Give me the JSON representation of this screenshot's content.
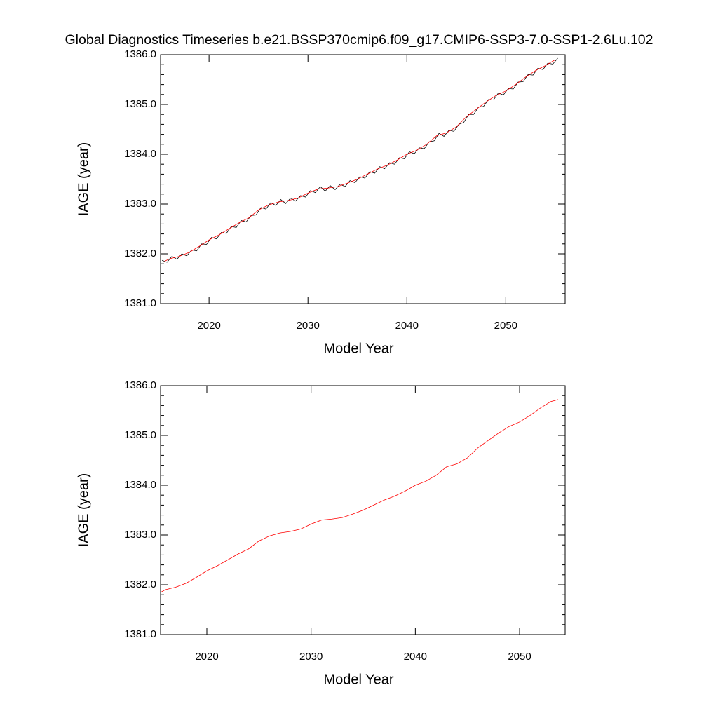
{
  "chart_data": [
    {
      "type": "line",
      "title": "Global Diagnostics Timeseries b.e21.BSSP370cmip6.f09_g17.CMIP6-SSP3-7.0-SSP1-2.6Lu.102",
      "xlabel": "Model Year",
      "ylabel": "IAGE (year)",
      "xlim": [
        2015.1,
        2056.0
      ],
      "xticks": [
        2020,
        2030,
        2040,
        2050
      ],
      "ylim": [
        1381,
        1386
      ],
      "yticks": [
        {
          "value": 1381,
          "label": "1381.0"
        },
        {
          "value": 1382,
          "label": "1382.0"
        },
        {
          "value": 1383,
          "label": "1383.0"
        },
        {
          "value": 1384,
          "label": "1384.0"
        },
        {
          "value": 1385,
          "label": "1385.0"
        },
        {
          "value": 1386,
          "label": "1386.0"
        }
      ],
      "series": [
        {
          "color": "#000000",
          "x": [
            2015.25,
            2015.75,
            2016.25,
            2016.75,
            2017.25,
            2017.75,
            2018.25,
            2018.75,
            2019.25,
            2019.75,
            2020.25,
            2020.75,
            2021.25,
            2021.75,
            2022.25,
            2022.75,
            2023.25,
            2023.75,
            2024.25,
            2024.75,
            2025.25,
            2025.75,
            2026.25,
            2026.75,
            2027.25,
            2027.75,
            2028.25,
            2028.75,
            2029.25,
            2029.75,
            2030.25,
            2030.75,
            2031.25,
            2031.75,
            2032.25,
            2032.75,
            2033.25,
            2033.75,
            2034.25,
            2034.75,
            2035.25,
            2035.75,
            2036.25,
            2036.75,
            2037.25,
            2037.75,
            2038.25,
            2038.75,
            2039.25,
            2039.75,
            2040.25,
            2040.75,
            2041.25,
            2041.75,
            2042.25,
            2042.75,
            2043.25,
            2043.75,
            2044.25,
            2044.75,
            2045.25,
            2045.75,
            2046.25,
            2046.75,
            2047.25,
            2047.75,
            2048.25,
            2048.75,
            2049.25,
            2049.75,
            2050.25,
            2050.75,
            2051.25,
            2051.75,
            2052.25,
            2052.75,
            2053.25,
            2053.75,
            2054.25,
            2054.75,
            2055.25
          ],
          "values": [
            1381.87,
            1381.83,
            1381.95,
            1381.89,
            1382.0,
            1381.96,
            1382.08,
            1382.06,
            1382.2,
            1382.19,
            1382.33,
            1382.3,
            1382.43,
            1382.41,
            1382.55,
            1382.53,
            1382.67,
            1382.64,
            1382.77,
            1382.78,
            1382.93,
            1382.9,
            1383.03,
            1382.97,
            1383.09,
            1383.01,
            1383.12,
            1383.06,
            1383.17,
            1383.14,
            1383.27,
            1383.23,
            1383.35,
            1383.26,
            1383.37,
            1383.29,
            1383.4,
            1383.35,
            1383.47,
            1383.43,
            1383.55,
            1383.52,
            1383.65,
            1383.62,
            1383.75,
            1383.71,
            1383.83,
            1383.8,
            1383.93,
            1383.91,
            1384.05,
            1384.01,
            1384.13,
            1384.11,
            1384.25,
            1384.27,
            1384.42,
            1384.36,
            1384.48,
            1384.46,
            1384.6,
            1384.64,
            1384.8,
            1384.8,
            1384.95,
            1384.96,
            1385.1,
            1385.09,
            1385.23,
            1385.19,
            1385.32,
            1385.31,
            1385.45,
            1385.46,
            1385.6,
            1385.59,
            1385.73,
            1385.7,
            1385.83,
            1385.81,
            1385.93
          ]
        },
        {
          "color": "#ff0000",
          "x": [
            2015.5,
            2016,
            2017,
            2018,
            2019,
            2020,
            2021,
            2022,
            2023,
            2024,
            2025,
            2026,
            2027,
            2028,
            2029,
            2030,
            2031,
            2032,
            2033,
            2034,
            2035,
            2036,
            2037,
            2038,
            2039,
            2040,
            2041,
            2042,
            2043,
            2044,
            2045,
            2046,
            2047,
            2048,
            2049,
            2050,
            2051,
            2052,
            2053,
            2054,
            2055
          ],
          "values": [
            1381.85,
            1381.9,
            1381.95,
            1382.03,
            1382.15,
            1382.28,
            1382.38,
            1382.5,
            1382.62,
            1382.72,
            1382.88,
            1382.98,
            1383.04,
            1383.07,
            1383.12,
            1383.22,
            1383.3,
            1383.32,
            1383.35,
            1383.42,
            1383.5,
            1383.6,
            1383.7,
            1383.78,
            1383.88,
            1384.0,
            1384.08,
            1384.2,
            1384.37,
            1384.43,
            1384.55,
            1384.75,
            1384.9,
            1385.05,
            1385.18,
            1385.27,
            1385.4,
            1385.55,
            1385.68,
            1385.78,
            1385.9
          ]
        }
      ]
    },
    {
      "type": "line",
      "xlabel": "Model Year",
      "ylabel": "IAGE (year)",
      "xlim": [
        2015.56,
        2054.37
      ],
      "xticks": [
        2020,
        2030,
        2040,
        2050
      ],
      "ylim": [
        1381,
        1386
      ],
      "yticks": [
        {
          "value": 1381,
          "label": "1381.0"
        },
        {
          "value": 1382,
          "label": "1382.0"
        },
        {
          "value": 1383,
          "label": "1383.0"
        },
        {
          "value": 1384,
          "label": "1384.0"
        },
        {
          "value": 1385,
          "label": "1385.0"
        },
        {
          "value": 1386,
          "label": "1386.0"
        }
      ],
      "series": [
        {
          "color": "#ff0000",
          "x": [
            2015.6,
            2016,
            2017,
            2018,
            2019,
            2020,
            2021,
            2022,
            2023,
            2024,
            2025,
            2026,
            2027,
            2028,
            2029,
            2030,
            2031,
            2032,
            2033,
            2034,
            2035,
            2036,
            2037,
            2038,
            2039,
            2040,
            2041,
            2042,
            2043,
            2044,
            2045,
            2046,
            2047,
            2048,
            2049,
            2050,
            2051,
            2052,
            2053,
            2053.7
          ],
          "values": [
            1381.85,
            1381.9,
            1381.95,
            1382.03,
            1382.15,
            1382.28,
            1382.38,
            1382.5,
            1382.62,
            1382.72,
            1382.88,
            1382.98,
            1383.04,
            1383.07,
            1383.12,
            1383.22,
            1383.3,
            1383.32,
            1383.35,
            1383.42,
            1383.5,
            1383.6,
            1383.7,
            1383.78,
            1383.88,
            1384.0,
            1384.08,
            1384.2,
            1384.37,
            1384.43,
            1384.55,
            1384.75,
            1384.9,
            1385.05,
            1385.18,
            1385.27,
            1385.4,
            1385.55,
            1385.68,
            1385.72
          ]
        }
      ]
    }
  ]
}
